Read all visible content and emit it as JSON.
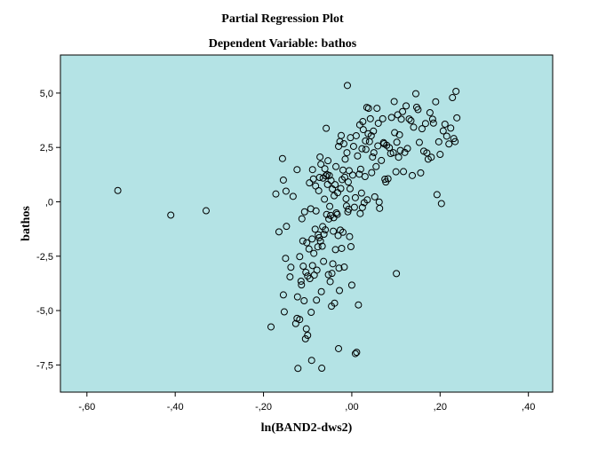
{
  "chart_data": {
    "type": "scatter",
    "title": "Partial Regression Plot",
    "subtitle": "Dependent Variable: bathos",
    "xlabel": "ln(BAND2-dws2)",
    "ylabel": "bathos",
    "xlim": [
      -0.66,
      0.455
    ],
    "ylim": [
      -8.75,
      6.75
    ],
    "x_ticks": [
      -0.6,
      -0.4,
      -0.2,
      0.0,
      0.2,
      0.4
    ],
    "x_tick_labels": [
      "-,60",
      "-,40",
      "-,20",
      ",00",
      ",20",
      ",40"
    ],
    "y_ticks": [
      5.0,
      2.5,
      0.0,
      -2.5,
      -5.0,
      -7.5
    ],
    "y_tick_labels": [
      "5,0",
      "2,5",
      ",0",
      "-2,5",
      "-5,0",
      "-7,5"
    ],
    "grid": false,
    "colors": {
      "plot_background": "#b4e3e5",
      "marker_stroke": "#000000"
    },
    "points": [
      [
        -0.53,
        0.52
      ],
      [
        -0.41,
        -0.61
      ],
      [
        -0.33,
        -0.41
      ],
      [
        -0.183,
        -5.75
      ],
      [
        -0.172,
        0.36
      ],
      [
        -0.165,
        -1.38
      ],
      [
        -0.157,
        1.99
      ],
      [
        -0.155,
        1.0
      ],
      [
        -0.155,
        -4.28
      ],
      [
        -0.153,
        -5.06
      ],
      [
        -0.15,
        -2.6
      ],
      [
        -0.149,
        0.49
      ],
      [
        -0.148,
        -1.13
      ],
      [
        -0.14,
        -3.45
      ],
      [
        -0.138,
        -3.01
      ],
      [
        -0.133,
        0.25
      ],
      [
        -0.127,
        -5.6
      ],
      [
        -0.124,
        1.48
      ],
      [
        -0.124,
        -5.36
      ],
      [
        -0.123,
        -4.37
      ],
      [
        -0.122,
        -7.66
      ],
      [
        -0.118,
        -2.52
      ],
      [
        -0.118,
        -5.41
      ],
      [
        -0.115,
        -3.65
      ],
      [
        -0.114,
        -3.82
      ],
      [
        -0.113,
        -0.78
      ],
      [
        -0.111,
        -1.8
      ],
      [
        -0.11,
        -2.96
      ],
      [
        -0.108,
        -4.55
      ],
      [
        -0.107,
        -0.46
      ],
      [
        -0.105,
        -6.3
      ],
      [
        -0.104,
        -3.24
      ],
      [
        -0.103,
        -5.84
      ],
      [
        -0.102,
        -1.88
      ],
      [
        -0.1,
        -3.41
      ],
      [
        -0.1,
        -6.14
      ],
      [
        -0.097,
        -2.17
      ],
      [
        -0.096,
        0.87
      ],
      [
        -0.095,
        -3.53
      ],
      [
        -0.093,
        -0.32
      ],
      [
        -0.092,
        -5.08
      ],
      [
        -0.091,
        -7.29
      ],
      [
        -0.09,
        -1.71
      ],
      [
        -0.089,
        -2.93
      ],
      [
        -0.089,
        1.48
      ],
      [
        -0.087,
        1.05
      ],
      [
        -0.086,
        -2.37
      ],
      [
        -0.085,
        -3.37
      ],
      [
        -0.083,
        -1.26
      ],
      [
        -0.082,
        0.73
      ],
      [
        -0.081,
        -0.42
      ],
      [
        -0.08,
        -4.52
      ],
      [
        -0.079,
        -3.14
      ],
      [
        -0.077,
        -2.07
      ],
      [
        -0.076,
        -1.52
      ],
      [
        -0.075,
        0.51
      ],
      [
        -0.074,
        -1.65
      ],
      [
        -0.073,
        1.12
      ],
      [
        -0.072,
        2.06
      ],
      [
        -0.071,
        -1.81
      ],
      [
        -0.07,
        1.73
      ],
      [
        -0.069,
        -4.13
      ],
      [
        -0.068,
        -7.65
      ],
      [
        -0.067,
        -2.04
      ],
      [
        -0.066,
        -1.14
      ],
      [
        -0.065,
        1.09
      ],
      [
        -0.064,
        -2.74
      ],
      [
        -0.063,
        -1.49
      ],
      [
        -0.062,
        0.12
      ],
      [
        -0.061,
        1.52
      ],
      [
        -0.06,
        -1.29
      ],
      [
        -0.059,
        1.19
      ],
      [
        -0.058,
        3.38
      ],
      [
        -0.057,
        -0.58
      ],
      [
        -0.056,
        1.25
      ],
      [
        -0.055,
        0.8
      ],
      [
        -0.054,
        1.89
      ],
      [
        -0.053,
        -3.35
      ],
      [
        -0.052,
        -0.79
      ],
      [
        -0.051,
        1.21
      ],
      [
        -0.05,
        -0.21
      ],
      [
        -0.049,
        -3.67
      ],
      [
        -0.048,
        -0.63
      ],
      [
        -0.047,
        0.98
      ],
      [
        -0.046,
        -4.8
      ],
      [
        -0.045,
        -3.29
      ],
      [
        -0.044,
        0.59
      ],
      [
        -0.043,
        -2.85
      ],
      [
        -0.042,
        -1.35
      ],
      [
        -0.041,
        -0.73
      ],
      [
        -0.04,
        0.28
      ],
      [
        -0.039,
        -4.66
      ],
      [
        -0.038,
        0.79
      ],
      [
        -0.037,
        -2.2
      ],
      [
        -0.036,
        1.62
      ],
      [
        -0.035,
        -0.51
      ],
      [
        -0.033,
        -0.58
      ],
      [
        -0.032,
        0.42
      ],
      [
        -0.031,
        -1.55
      ],
      [
        -0.03,
        -6.75
      ],
      [
        -0.03,
        2.55
      ],
      [
        -0.029,
        -3.05
      ],
      [
        -0.028,
        -4.08
      ],
      [
        -0.027,
        2.77
      ],
      [
        -0.026,
        -1.3
      ],
      [
        -0.025,
        0.61
      ],
      [
        -0.024,
        3.05
      ],
      [
        -0.023,
        -2.14
      ],
      [
        -0.022,
        1.02
      ],
      [
        -0.02,
        1.46
      ],
      [
        -0.02,
        -1.4
      ],
      [
        -0.018,
        2.67
      ],
      [
        -0.017,
        -3.0
      ],
      [
        -0.016,
        1.13
      ],
      [
        -0.015,
        1.96
      ],
      [
        -0.013,
        0.14
      ],
      [
        -0.012,
        -0.19
      ],
      [
        -0.011,
        2.26
      ],
      [
        -0.01,
        5.35
      ],
      [
        -0.009,
        -0.46
      ],
      [
        -0.008,
        0.91
      ],
      [
        -0.007,
        -0.34
      ],
      [
        -0.006,
        1.43
      ],
      [
        -0.005,
        -1.6
      ],
      [
        -0.004,
        0.6
      ],
      [
        -0.003,
        2.95
      ],
      [
        -0.002,
        -2.06
      ],
      [
        0.0,
        -3.83
      ],
      [
        0.002,
        1.23
      ],
      [
        0.004,
        2.55
      ],
      [
        0.006,
        -0.25
      ],
      [
        0.008,
        0.19
      ],
      [
        0.008,
        -6.98
      ],
      [
        0.01,
        3.04
      ],
      [
        0.011,
        -6.92
      ],
      [
        0.013,
        2.11
      ],
      [
        0.015,
        -4.74
      ],
      [
        0.017,
        1.27
      ],
      [
        0.018,
        3.54
      ],
      [
        0.019,
        -0.54
      ],
      [
        0.02,
        1.5
      ],
      [
        0.022,
        0.4
      ],
      [
        0.023,
        2.44
      ],
      [
        0.024,
        -0.26
      ],
      [
        0.025,
        3.69
      ],
      [
        0.026,
        3.32
      ],
      [
        0.028,
        -0.04
      ],
      [
        0.03,
        1.16
      ],
      [
        0.031,
        2.8
      ],
      [
        0.032,
        2.41
      ],
      [
        0.034,
        4.34
      ],
      [
        0.035,
        0.09
      ],
      [
        0.037,
        3.13
      ],
      [
        0.038,
        4.3
      ],
      [
        0.04,
        2.77
      ],
      [
        0.042,
        3.82
      ],
      [
        0.044,
        3.04
      ],
      [
        0.045,
        1.34
      ],
      [
        0.047,
        2.06
      ],
      [
        0.049,
        3.25
      ],
      [
        0.05,
        2.26
      ],
      [
        0.052,
        0.23
      ],
      [
        0.055,
        1.62
      ],
      [
        0.057,
        4.3
      ],
      [
        0.059,
        2.57
      ],
      [
        0.06,
        3.61
      ],
      [
        0.062,
        -0.01
      ],
      [
        0.063,
        -0.3
      ],
      [
        0.067,
        1.9
      ],
      [
        0.07,
        3.82
      ],
      [
        0.072,
        2.72
      ],
      [
        0.073,
        2.67
      ],
      [
        0.075,
        1.04
      ],
      [
        0.077,
        0.91
      ],
      [
        0.079,
        2.6
      ],
      [
        0.082,
        1.06
      ],
      [
        0.085,
        2.49
      ],
      [
        0.088,
        2.22
      ],
      [
        0.09,
        3.88
      ],
      [
        0.094,
        2.26
      ],
      [
        0.096,
        4.61
      ],
      [
        0.097,
        3.18
      ],
      [
        0.1,
        1.38
      ],
      [
        0.101,
        -3.3
      ],
      [
        0.102,
        2.74
      ],
      [
        0.104,
        4.0
      ],
      [
        0.106,
        2.05
      ],
      [
        0.108,
        3.08
      ],
      [
        0.11,
        2.36
      ],
      [
        0.112,
        3.8
      ],
      [
        0.115,
        4.15
      ],
      [
        0.117,
        1.39
      ],
      [
        0.12,
        2.27
      ],
      [
        0.123,
        4.41
      ],
      [
        0.126,
        2.45
      ],
      [
        0.13,
        3.81
      ],
      [
        0.134,
        3.73
      ],
      [
        0.137,
        1.21
      ],
      [
        0.14,
        3.43
      ],
      [
        0.145,
        4.97
      ],
      [
        0.147,
        4.35
      ],
      [
        0.15,
        4.24
      ],
      [
        0.153,
        2.73
      ],
      [
        0.156,
        1.33
      ],
      [
        0.159,
        3.36
      ],
      [
        0.163,
        2.33
      ],
      [
        0.167,
        3.6
      ],
      [
        0.17,
        2.25
      ],
      [
        0.173,
        1.96
      ],
      [
        0.177,
        4.1
      ],
      [
        0.18,
        2.05
      ],
      [
        0.183,
        3.8
      ],
      [
        0.185,
        3.62
      ],
      [
        0.19,
        4.6
      ],
      [
        0.193,
        0.33
      ],
      [
        0.197,
        2.76
      ],
      [
        0.2,
        2.18
      ],
      [
        0.203,
        -0.08
      ],
      [
        0.207,
        3.26
      ],
      [
        0.211,
        3.57
      ],
      [
        0.215,
        3.02
      ],
      [
        0.22,
        2.66
      ],
      [
        0.224,
        3.39
      ],
      [
        0.228,
        4.79
      ],
      [
        0.231,
        2.91
      ],
      [
        0.234,
        2.77
      ],
      [
        0.236,
        5.08
      ],
      [
        0.238,
        3.86
      ]
    ]
  }
}
